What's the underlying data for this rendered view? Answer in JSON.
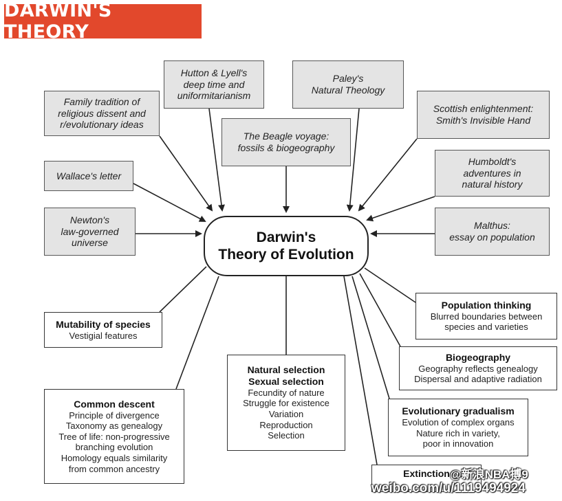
{
  "header": {
    "title": "DARWIN'S THEORY"
  },
  "center": {
    "line1": "Darwin's",
    "line2": "Theory of Evolution"
  },
  "influences": {
    "family": [
      "Family tradition of",
      "religious dissent and",
      "r/evolutionary ideas"
    ],
    "hutton": [
      "Hutton & Lyell's",
      "deep time and",
      "uniformitarianism"
    ],
    "paley": [
      "Paley's",
      "Natural Theology"
    ],
    "scottish": [
      "Scottish enlightenment:",
      "Smith's Invisible Hand"
    ],
    "beagle": [
      "The Beagle voyage:",
      "fossils & biogeography"
    ],
    "wallace": [
      "Wallace's letter"
    ],
    "humboldt": [
      "Humboldt's",
      "adventures in",
      "natural history"
    ],
    "newton": [
      "Newton's",
      "law-governed",
      "universe"
    ],
    "malthus": [
      "Malthus:",
      "essay on population"
    ]
  },
  "outcomes": {
    "mutability": {
      "title": "Mutability of species",
      "lines": [
        "Vestigial features"
      ]
    },
    "population": {
      "title": "Population thinking",
      "lines": [
        "Blurred boundaries between",
        "species and varieties"
      ]
    },
    "biogeography": {
      "title": "Biogeography",
      "lines": [
        "Geography reflects genealogy",
        "Dispersal and adaptive radiation"
      ]
    },
    "natural_selection": {
      "title": "Natural selection",
      "title2": "Sexual selection",
      "lines": [
        "Fecundity of nature",
        "Struggle for existence",
        "Variation",
        "Reproduction",
        "Selection"
      ]
    },
    "common_descent": {
      "title": "Common descent",
      "lines": [
        "Principle of divergence",
        "Taxonomy as genealogy",
        "Tree of life: non-progressive",
        "branching evolution",
        "Homology equals similarity",
        "from common ancestry"
      ]
    },
    "gradualism": {
      "title": "Evolutionary gradualism",
      "lines": [
        "Evolution of complex organs",
        "Nature rich in variety,",
        "poor in innovation"
      ]
    },
    "extinction": {
      "title": "Extinction"
    }
  },
  "watermark": {
    "handle": "@新浪NBA搏9",
    "url": "weibo.com/u/1119494924"
  },
  "colors": {
    "header_bg": "#e2482c",
    "influence_fill": "#e4e4e4",
    "outline": "#333333"
  }
}
